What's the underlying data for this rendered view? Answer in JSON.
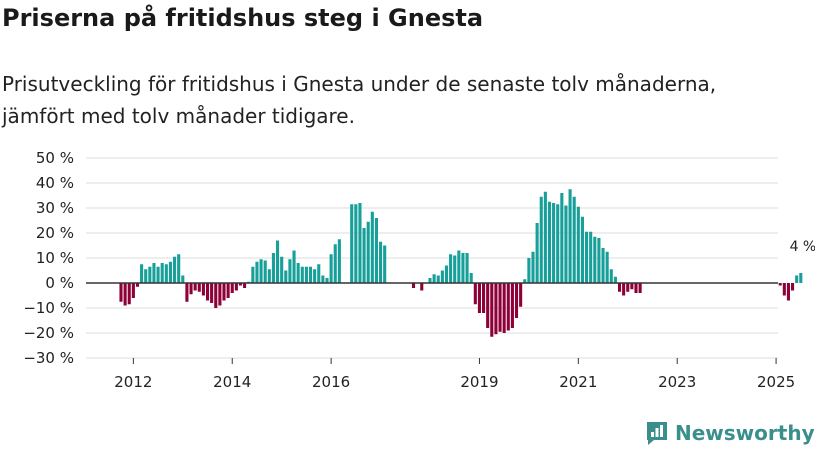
{
  "title": "Priserna på fritidshus steg i Gnesta",
  "subtitle": "Prisutveckling för fritidshus i Gnesta under de senaste tolv månaderna, jämfört med tolv månader tidigare.",
  "brand": "Newsworthy",
  "colors": {
    "positive": "#17a09a",
    "negative": "#8e0038",
    "grid": "#dddddd",
    "zero": "#333333",
    "brand": "#3a8f8c"
  },
  "chart_data": {
    "type": "bar",
    "title": "Priserna på fritidshus steg i Gnesta",
    "xlabel": "",
    "ylabel": "",
    "ylim": [
      -30,
      50
    ],
    "yticks": [
      50,
      40,
      30,
      20,
      10,
      0,
      -10,
      -20,
      -30
    ],
    "ytick_labels": [
      "50 %",
      "40 %",
      "30 %",
      "20 %",
      "10 %",
      "0 %",
      "−10 %",
      "−20 %",
      "−30 %"
    ],
    "xticks": [
      "2012",
      "2014",
      "2016",
      "2019",
      "2021",
      "2023",
      "2025"
    ],
    "x_start": "2011-10",
    "annotation": {
      "label": "4 %",
      "value": 4,
      "index": 166
    },
    "values": [
      -7.5,
      -9,
      -8.5,
      -6,
      -1.5,
      7.5,
      5.5,
      6.5,
      8,
      6.5,
      8,
      7.5,
      8.5,
      10.5,
      11.5,
      3,
      -7.5,
      -4.5,
      -3,
      -3.5,
      -5,
      -7,
      -8,
      -10,
      -9,
      -7,
      -6,
      -4,
      -3,
      -1,
      -2,
      0.5,
      6.5,
      8.5,
      9.5,
      9,
      5.5,
      12,
      17,
      10.5,
      5,
      9.5,
      13,
      8,
      6.5,
      6.5,
      6.5,
      5.5,
      7.5,
      3,
      2,
      11.5,
      15.5,
      17.5,
      null,
      null,
      31.5,
      31.5,
      32,
      22,
      24.5,
      28.5,
      26,
      16.5,
      15,
      null,
      null,
      null,
      null,
      null,
      null,
      -2,
      null,
      -3,
      null,
      2,
      3.5,
      3,
      5,
      7,
      11.5,
      11,
      13,
      12,
      12,
      4,
      -8.5,
      -12,
      -12,
      -18,
      -21.5,
      -20.5,
      -19.5,
      -20,
      -19,
      -18,
      -14,
      -9.5,
      1.5,
      10,
      12.5,
      24,
      34.5,
      36.5,
      32.5,
      32,
      31.5,
      36,
      31,
      37.5,
      34.5,
      30.5,
      26.5,
      20.5,
      20.5,
      18.5,
      18,
      14,
      12.5,
      5.5,
      2.5,
      -3.5,
      -5,
      -3.5,
      -2.5,
      -4,
      -4,
      null,
      null,
      null,
      null,
      null,
      null,
      null,
      null,
      null,
      null,
      null,
      null,
      null,
      null,
      null,
      null,
      null,
      null,
      null,
      null,
      null,
      null,
      null,
      null,
      null,
      null,
      null,
      null,
      null,
      null,
      null,
      null,
      null,
      -1,
      -5,
      -7,
      -3,
      3,
      4
    ]
  }
}
